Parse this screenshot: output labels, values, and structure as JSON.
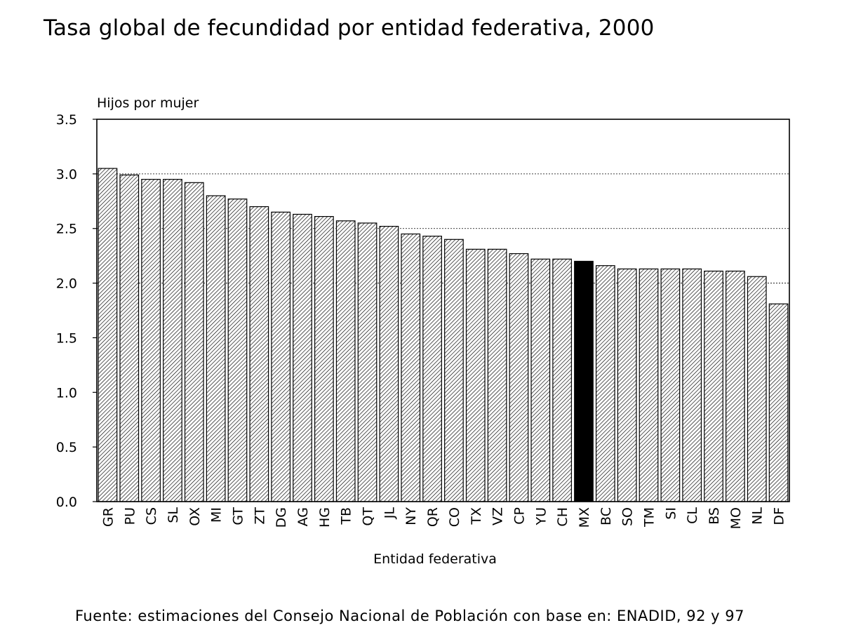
{
  "chart_data": {
    "type": "bar",
    "title": "Tasa global de fecundidad por entidad federativa, 2000",
    "ylabel": "Hijos por mujer",
    "xlabel": "Entidad federativa",
    "ylim": [
      0,
      3.5
    ],
    "yticks": [
      "0.0",
      "0.5",
      "1.0",
      "1.5",
      "2.0",
      "2.5",
      "3.0",
      "3.5"
    ],
    "grid": "dotted horizontal at 2.0, 2.5, 3.0",
    "categories": [
      "GR",
      "PU",
      "CS",
      "SL",
      "OX",
      "MI",
      "GT",
      "ZT",
      "DG",
      "AG",
      "HG",
      "TB",
      "QT",
      "JL",
      "NY",
      "QR",
      "CO",
      "TX",
      "VZ",
      "CP",
      "YU",
      "CH",
      "MX",
      "BC",
      "SO",
      "TM",
      "SI",
      "CL",
      "BS",
      "MO",
      "NL",
      "DF"
    ],
    "values": [
      3.05,
      2.99,
      2.95,
      2.95,
      2.92,
      2.8,
      2.77,
      2.7,
      2.65,
      2.63,
      2.61,
      2.57,
      2.55,
      2.52,
      2.45,
      2.43,
      2.4,
      2.31,
      2.31,
      2.27,
      2.22,
      2.22,
      2.2,
      2.16,
      2.13,
      2.13,
      2.13,
      2.13,
      2.11,
      2.11,
      2.06,
      1.81
    ],
    "highlight": "MX",
    "colors": {
      "bar": "#ffffff",
      "hatch": "#000000",
      "highlight": "#000000",
      "axis": "#000000"
    }
  },
  "source": "Fuente: estimaciones del Consejo Nacional de Población con base en: ENADID, 92 y 97"
}
